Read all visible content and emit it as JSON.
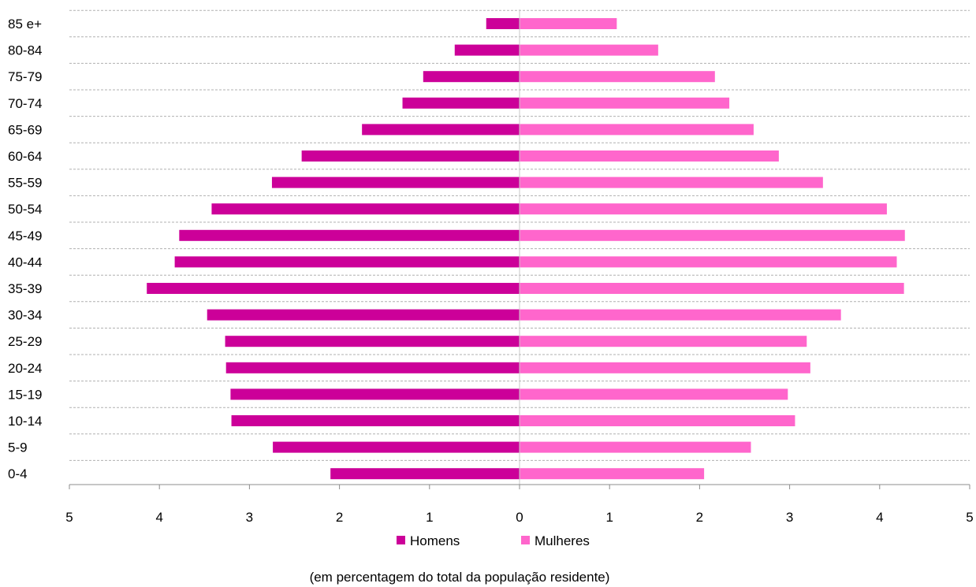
{
  "chart_data": {
    "type": "bar",
    "orientation": "horizontal",
    "layout": "population-pyramid",
    "categories": [
      "0-4",
      "5-9",
      "10-14",
      "15-19",
      "20-24",
      "25-29",
      "30-34",
      "35-39",
      "40-44",
      "45-49",
      "50-54",
      "55-59",
      "60-64",
      "65-69",
      "70-74",
      "75-79",
      "80-84",
      "85 e+"
    ],
    "series": [
      {
        "name": "Homens",
        "color": "#cc0099",
        "values": [
          2.1,
          2.74,
          3.2,
          3.21,
          3.26,
          3.27,
          3.47,
          4.14,
          3.83,
          3.78,
          3.42,
          2.75,
          2.42,
          1.75,
          1.3,
          1.07,
          0.72,
          0.37
        ]
      },
      {
        "name": "Mulheres",
        "color": "#ff66cc",
        "values": [
          2.05,
          2.57,
          3.06,
          2.98,
          3.23,
          3.19,
          3.57,
          4.27,
          4.19,
          4.28,
          4.08,
          3.37,
          2.88,
          2.6,
          2.33,
          2.17,
          1.54,
          1.08
        ]
      }
    ],
    "xlim": [
      -5,
      5
    ],
    "x_ticks": [
      "5",
      "4",
      "3",
      "2",
      "1",
      "0",
      "1",
      "2",
      "3",
      "4",
      "5"
    ],
    "grid": "horizontal-dashed",
    "legend_position": "bottom",
    "caption": "(em percentagem do total da população residente)"
  }
}
